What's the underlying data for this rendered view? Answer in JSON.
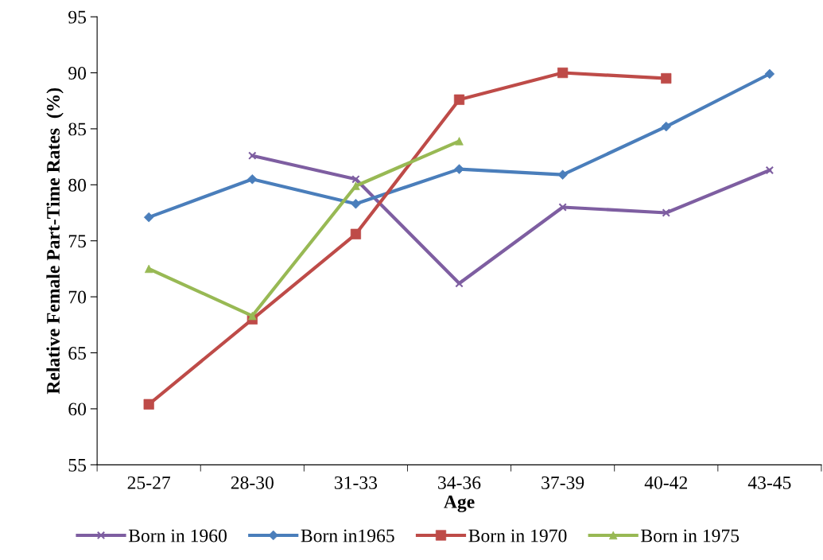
{
  "chart_data": {
    "type": "line",
    "xlabel": "Age",
    "ylabel": "Relative Female Part-Time Rates  (%)",
    "categories": [
      "25-27",
      "28-30",
      "31-33",
      "34-36",
      "37-39",
      "40-42",
      "43-45"
    ],
    "series": [
      {
        "name": "Born in 1960",
        "color": "#7e5ea1",
        "marker": "cross",
        "values": [
          null,
          82.6,
          80.5,
          71.2,
          78.0,
          77.5,
          81.3
        ]
      },
      {
        "name": "Born in1965",
        "color": "#4a7ebb",
        "marker": "diamond",
        "values": [
          77.1,
          80.5,
          78.3,
          81.4,
          80.9,
          85.2,
          89.9
        ]
      },
      {
        "name": "Born in 1970",
        "color": "#be4b48",
        "marker": "square",
        "values": [
          60.4,
          68.0,
          75.6,
          87.6,
          90.0,
          89.5,
          null
        ]
      },
      {
        "name": "Born in 1975",
        "color": "#98b954",
        "marker": "triangle",
        "values": [
          72.5,
          68.3,
          79.9,
          83.9,
          null,
          null,
          null
        ]
      }
    ],
    "ylim": [
      55,
      95
    ],
    "yticks": [
      55,
      60,
      65,
      70,
      75,
      80,
      85,
      90,
      95
    ],
    "grid": false,
    "legend": "bottom",
    "line_style": "solid"
  }
}
